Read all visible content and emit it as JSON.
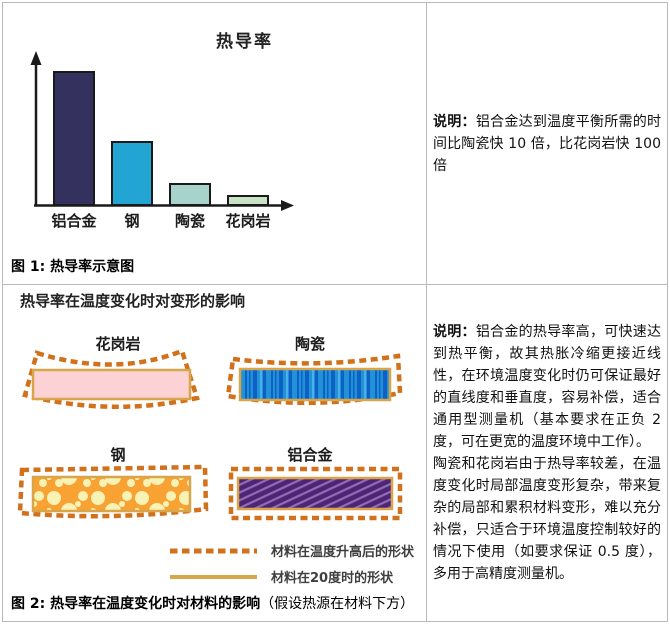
{
  "figure1": {
    "caption": "图 1: 热导率示意图"
  },
  "chart_data": {
    "type": "bar",
    "title": "热导率",
    "categories": [
      "铝合金",
      "钢",
      "陶瓷",
      "花岗岩"
    ],
    "values": [
      100,
      47,
      16,
      7
    ],
    "xlabel": "",
    "ylabel": "",
    "ylim": [
      0,
      100
    ],
    "grid": false,
    "legend": "none",
    "bar_colors": [
      "#34315f",
      "#22a5d3",
      "#a7d3cb",
      "#c9e3c5"
    ]
  },
  "note1": {
    "label": "说明：",
    "text": "铝合金达到温度平衡所需的时间比陶瓷快 10 倍，比花岗岩快 100 倍"
  },
  "figure2": {
    "heading": "热导率在温度变化时对变形的影响",
    "materials": [
      "花岗岩",
      "陶瓷",
      "钢",
      "铝合金"
    ],
    "legend_dashed": "材料在温度升高后的形状",
    "legend_solid": "材料在20度时的形状",
    "caption_bold": "图 2: 热导率在温度变化时对材料的影响",
    "caption_normal": "（假设热源在材料下方）"
  },
  "note2": {
    "label": "说明：",
    "para1": "铝合金的热导率高，可快速达到热平衡，故其热胀冷缩更接近线性，在环境温度变化时仍可保证最好的直线度和垂直度，容易补偿，适合通用型测量机（基本要求在正负 2 度，可在更宽的温度环境中工作）。",
    "para2": "陶瓷和花岗岩由于热导率较差，在温度变化时局部温度变形复杂，带来复杂的局部和累积材料变形，难以充分补偿，只适合于环境温度控制较好的情况下使用（如要求保证 0.5 度），多用于高精度测量机。"
  },
  "colors": {
    "border": "#b9b9b9",
    "dash-outline": "#d2711c",
    "solid-outline": "#d8a54b",
    "granite-fill": "#fcd2d5",
    "ceramic-fill": "#2191d8",
    "steel-fill": "#f7a233",
    "aluminum-fill": "#4f2478",
    "axis": "#1a1a1a"
  }
}
